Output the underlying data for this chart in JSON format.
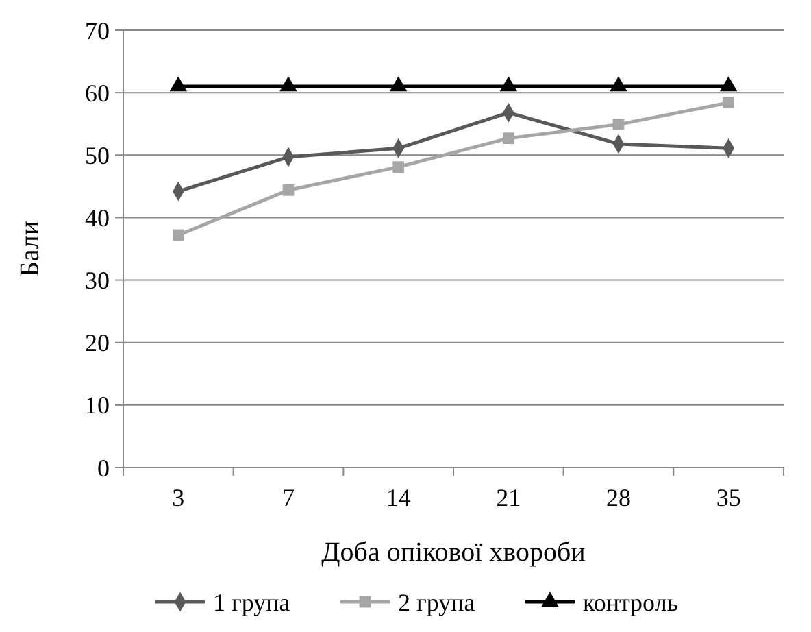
{
  "chart_data": {
    "type": "line",
    "xlabel": "Доба опікової хвороби",
    "ylabel": "Бали",
    "categories": [
      "3",
      "7",
      "14",
      "21",
      "28",
      "35"
    ],
    "series": [
      {
        "name": "1 група",
        "color": "#595959",
        "marker": "diamond",
        "values": [
          44.2,
          49.7,
          51.1,
          56.8,
          51.8,
          51.1
        ]
      },
      {
        "name": "2 група",
        "color": "#a6a6a6",
        "marker": "square",
        "values": [
          37.2,
          44.4,
          48.1,
          52.7,
          54.9,
          58.4
        ]
      },
      {
        "name": "контроль",
        "color": "#000000",
        "marker": "triangle",
        "values": [
          61,
          61,
          61,
          61,
          61,
          61
        ]
      }
    ],
    "ylim": [
      0,
      70
    ],
    "yticks": [
      0,
      10,
      20,
      30,
      40,
      50,
      60,
      70
    ],
    "grid": "y",
    "legend": "bottom"
  }
}
